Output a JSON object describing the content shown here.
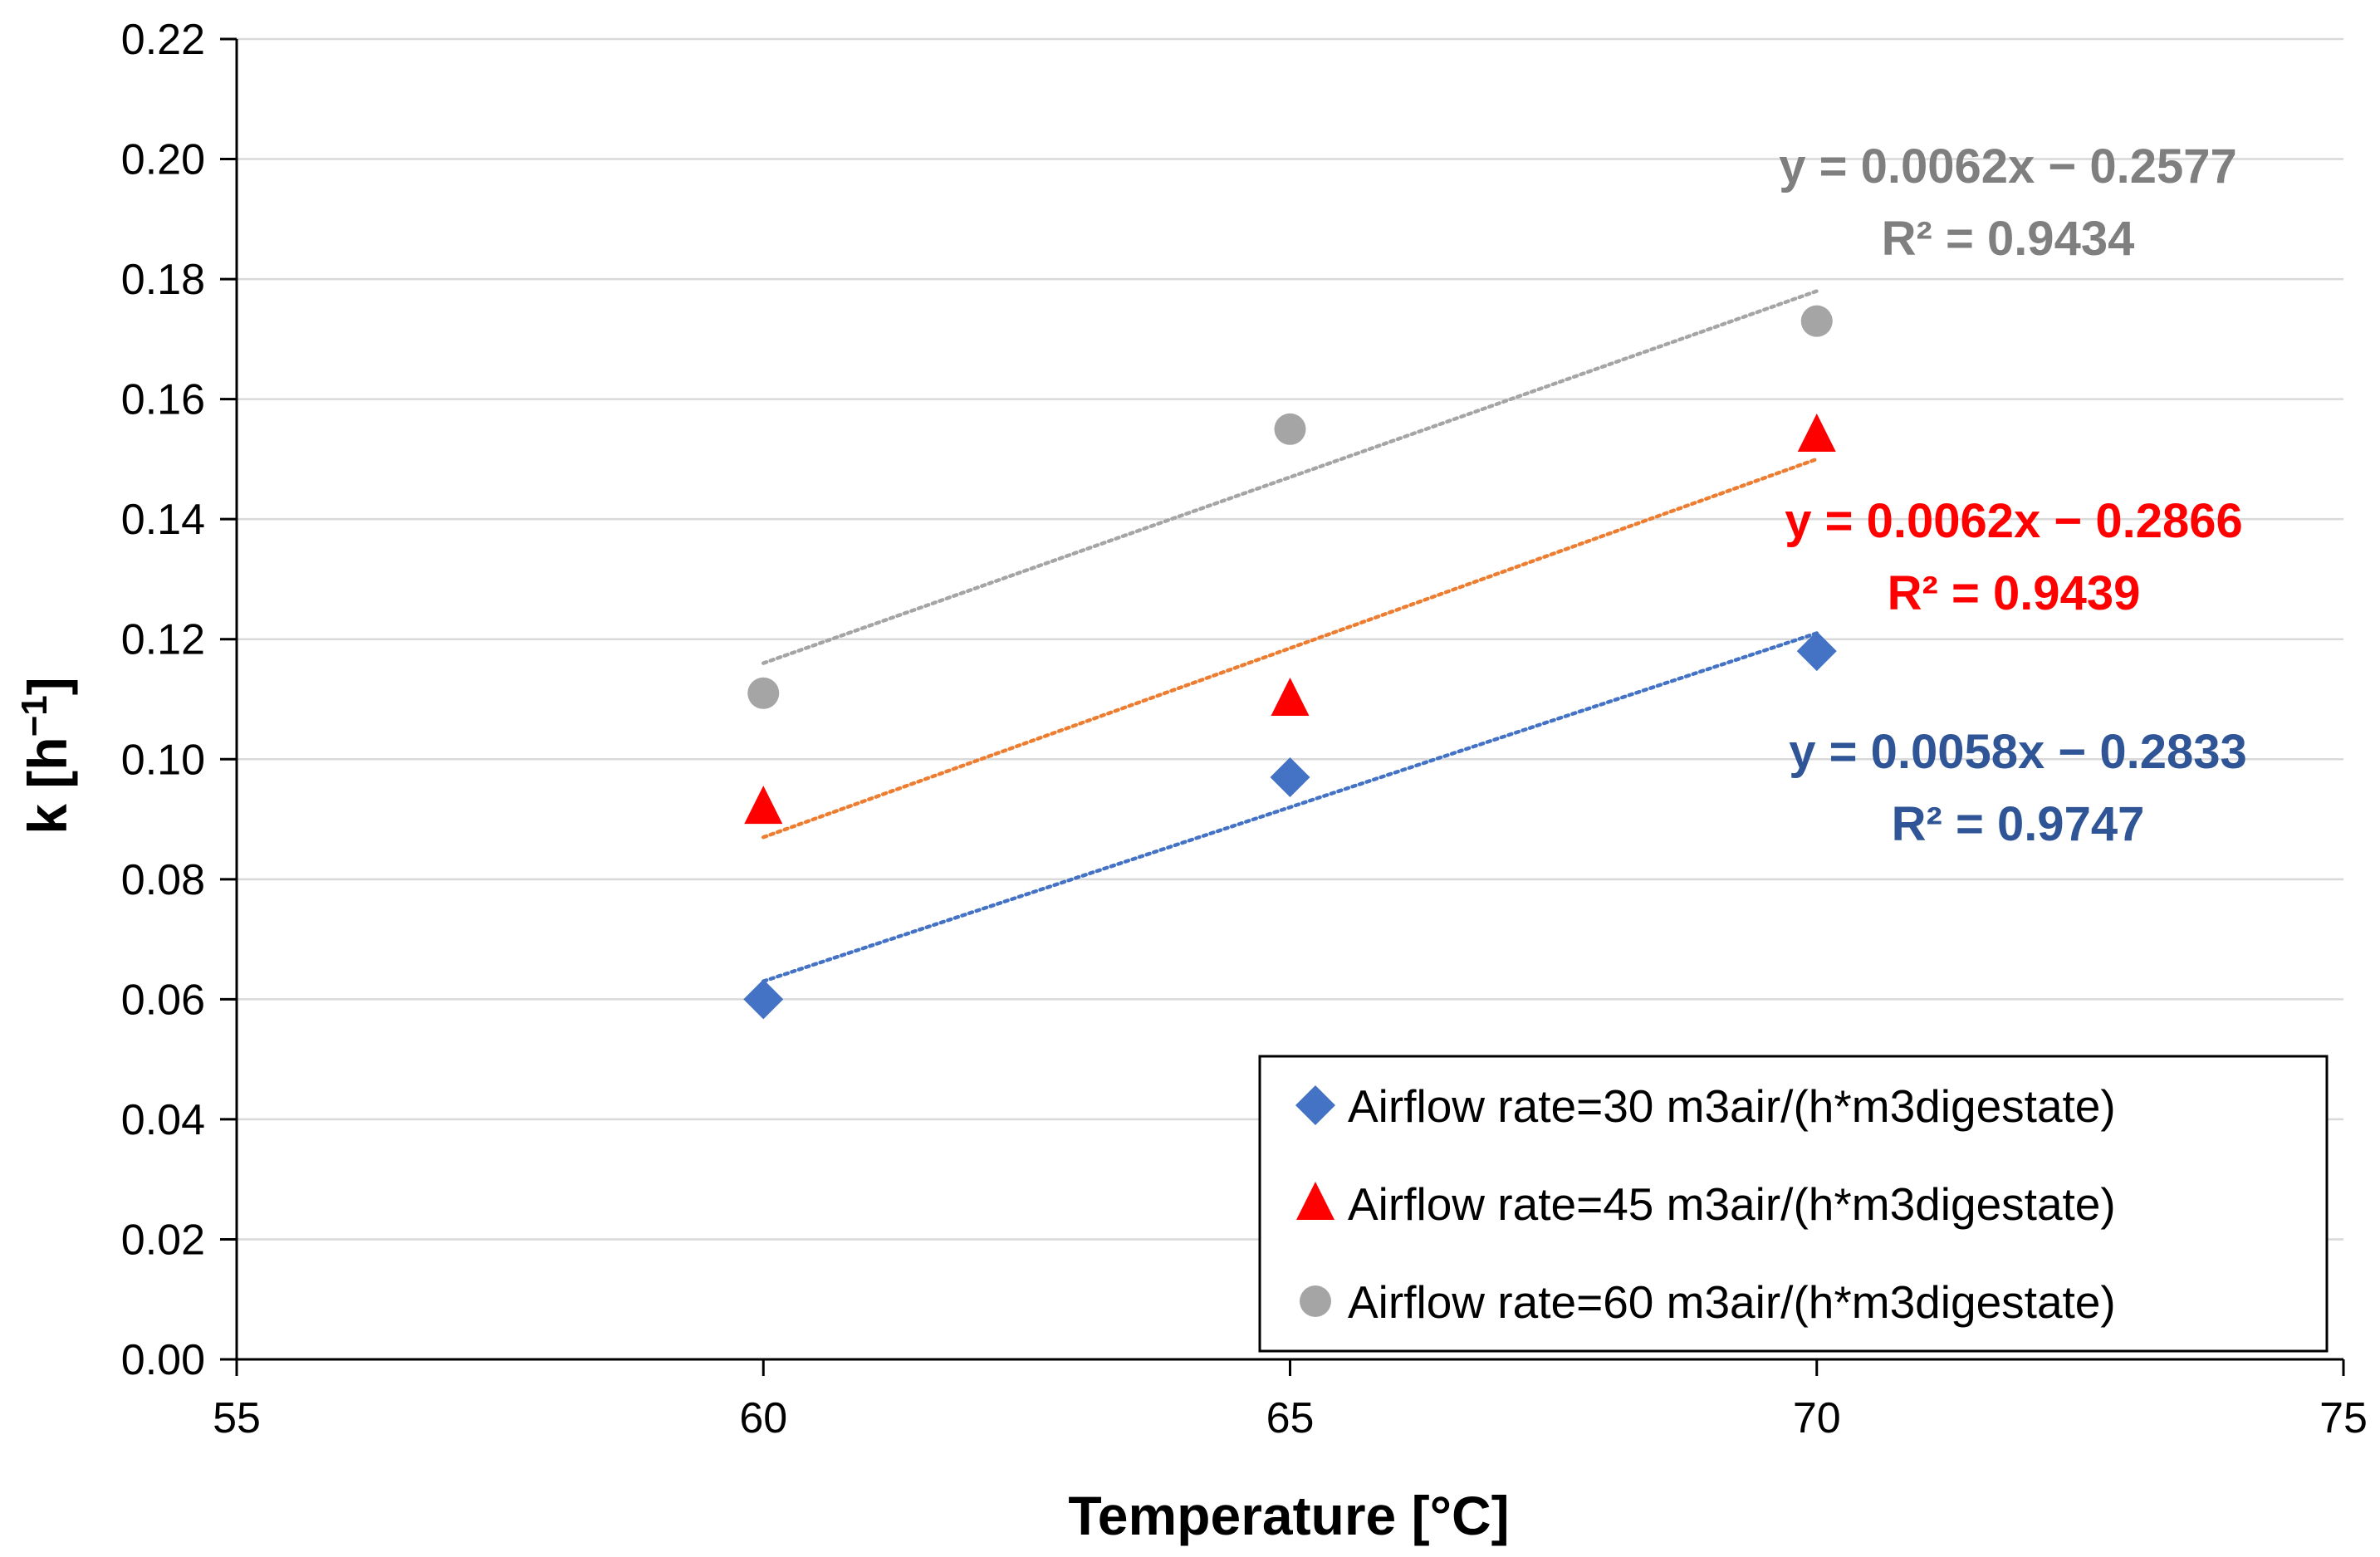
{
  "chart_data": {
    "type": "scatter",
    "title": "",
    "xlabel": "Temperature [°C]",
    "ylabel": "k [h",
    "ylabel_superscript": "−1",
    "ylabel_suffix": "]",
    "xlim": [
      55,
      75
    ],
    "ylim": [
      0.0,
      0.22
    ],
    "x_ticks": [
      55,
      60,
      65,
      70,
      75
    ],
    "y_ticks": [
      0.0,
      0.02,
      0.04,
      0.06,
      0.08,
      0.1,
      0.12,
      0.14,
      0.16,
      0.18,
      0.2,
      0.22
    ],
    "x_tick_labels": [
      "55",
      "60",
      "65",
      "70",
      "75"
    ],
    "y_tick_labels": [
      "0.00",
      "0.02",
      "0.04",
      "0.06",
      "0.08",
      "0.10",
      "0.12",
      "0.14",
      "0.16",
      "0.18",
      "0.20",
      "0.22"
    ],
    "grid": "horizontal",
    "legend_position": "bottom-right",
    "series": [
      {
        "name": "Airflow rate=30 m3air/(h*m3digestate)",
        "marker": "diamond",
        "color": "#4472C4",
        "trend_color": "#4472C4",
        "label_color": "#2F5597",
        "x": [
          60,
          65,
          70
        ],
        "y": [
          0.06,
          0.097,
          0.118
        ],
        "trendline": {
          "x": [
            60,
            70
          ],
          "y": [
            0.063,
            0.121
          ]
        },
        "equation": "y = 0.0058x − 0.2833",
        "r2": "R² = 0.9747"
      },
      {
        "name": "Airflow rate=45 m3air/(h*m3digestate)",
        "marker": "triangle",
        "color": "#FF0000",
        "trend_color": "#ED7D31",
        "label_color": "#FF0000",
        "x": [
          60,
          65,
          70
        ],
        "y": [
          0.092,
          0.11,
          0.154
        ],
        "trendline": {
          "x": [
            60,
            70
          ],
          "y": [
            0.087,
            0.15
          ]
        },
        "equation": "y = 0.0062x − 0.2866",
        "r2": "R² = 0.9439"
      },
      {
        "name": "Airflow rate=60 m3air/(h*m3digestate)",
        "marker": "circle",
        "color": "#A5A5A5",
        "trend_color": "#A5A5A5",
        "label_color": "#7F7F7F",
        "x": [
          60,
          65,
          70
        ],
        "y": [
          0.111,
          0.155,
          0.173
        ],
        "trendline": {
          "x": [
            60,
            70
          ],
          "y": [
            0.116,
            0.178
          ]
        },
        "equation": "y = 0.0062x − 0.2577",
        "r2": "R² = 0.9434"
      }
    ]
  }
}
